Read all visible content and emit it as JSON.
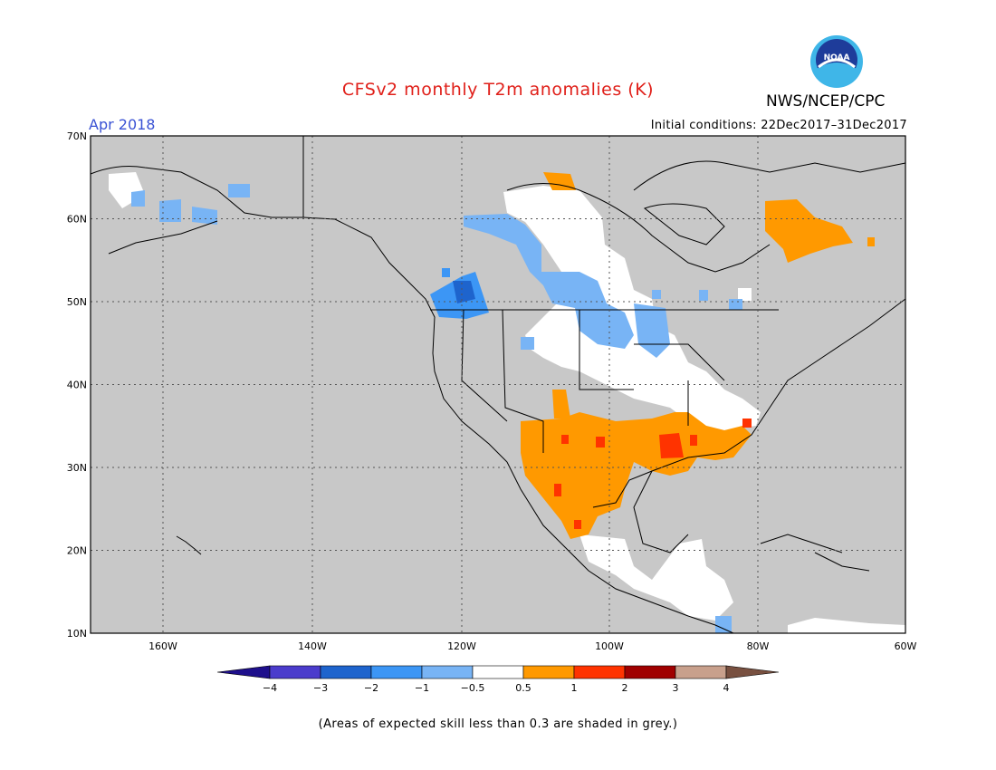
{
  "header": {
    "title": "CFSv2 monthly T2m anomalies (K)",
    "organization": "NWS/NCEP/CPC",
    "month": "Apr 2018",
    "initial_conditions": "Initial conditions: 22Dec2017–31Dec2017",
    "logo_text": "NOAA"
  },
  "colors": {
    "title": "#e0201a",
    "month": "#3a52d4",
    "land_grey": "#c8c8c8",
    "logo_blue": "#1e3c9a",
    "logo_cyan": "#3fb6e8"
  },
  "map": {
    "lat_labels": [
      "70N",
      "60N",
      "50N",
      "40N",
      "30N",
      "20N",
      "10N"
    ],
    "lon_labels": [
      "160W",
      "140W",
      "120W",
      "100W",
      "80W",
      "60W"
    ]
  },
  "legend": {
    "tick_labels": [
      "−4",
      "−3",
      "−2",
      "−1",
      "−0.5",
      "0.5",
      "1",
      "2",
      "3",
      "4"
    ],
    "colors": [
      "#1e0f8c",
      "#4b3ccc",
      "#1e64cd",
      "#3c96f5",
      "#78b4f5",
      "#ffffff",
      "#ff9900",
      "#ff3300",
      "#a00000",
      "#c8a08c",
      "#785040"
    ]
  },
  "footnote": "(Areas of expected skill less than 0.3 are shaded in grey.)"
}
